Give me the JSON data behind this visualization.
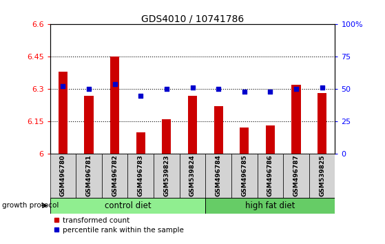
{
  "title": "GDS4010 / 10741786",
  "samples": [
    "GSM496780",
    "GSM496781",
    "GSM496782",
    "GSM496783",
    "GSM539823",
    "GSM539824",
    "GSM496784",
    "GSM496785",
    "GSM496786",
    "GSM496787",
    "GSM539825"
  ],
  "transformed_counts": [
    6.38,
    6.27,
    6.45,
    6.1,
    6.16,
    6.27,
    6.22,
    6.12,
    6.13,
    6.32,
    6.28
  ],
  "percentile_ranks": [
    52,
    50,
    54,
    45,
    50,
    51,
    50,
    48,
    48,
    50,
    51
  ],
  "ylim_left": [
    6.0,
    6.6
  ],
  "ylim_right": [
    0,
    100
  ],
  "yticks_left": [
    6.0,
    6.15,
    6.3,
    6.45,
    6.6
  ],
  "yticks_right": [
    0,
    25,
    50,
    75,
    100
  ],
  "ytick_labels_left": [
    "6",
    "6.15",
    "6.3",
    "6.45",
    "6.6"
  ],
  "ytick_labels_right": [
    "0",
    "25",
    "50",
    "75",
    "100%"
  ],
  "bar_color": "#cc0000",
  "dot_color": "#0000cc",
  "control_diet_indices": [
    0,
    1,
    2,
    3,
    4,
    5
  ],
  "high_fat_indices": [
    6,
    7,
    8,
    9,
    10
  ],
  "control_diet_label": "control diet",
  "high_fat_label": "high fat diet",
  "growth_protocol_label": "growth protocol",
  "legend_bar_label": "transformed count",
  "legend_dot_label": "percentile rank within the sample",
  "control_color": "#90EE90",
  "high_fat_color": "#66cc66",
  "xticklabel_bg": "#d3d3d3"
}
